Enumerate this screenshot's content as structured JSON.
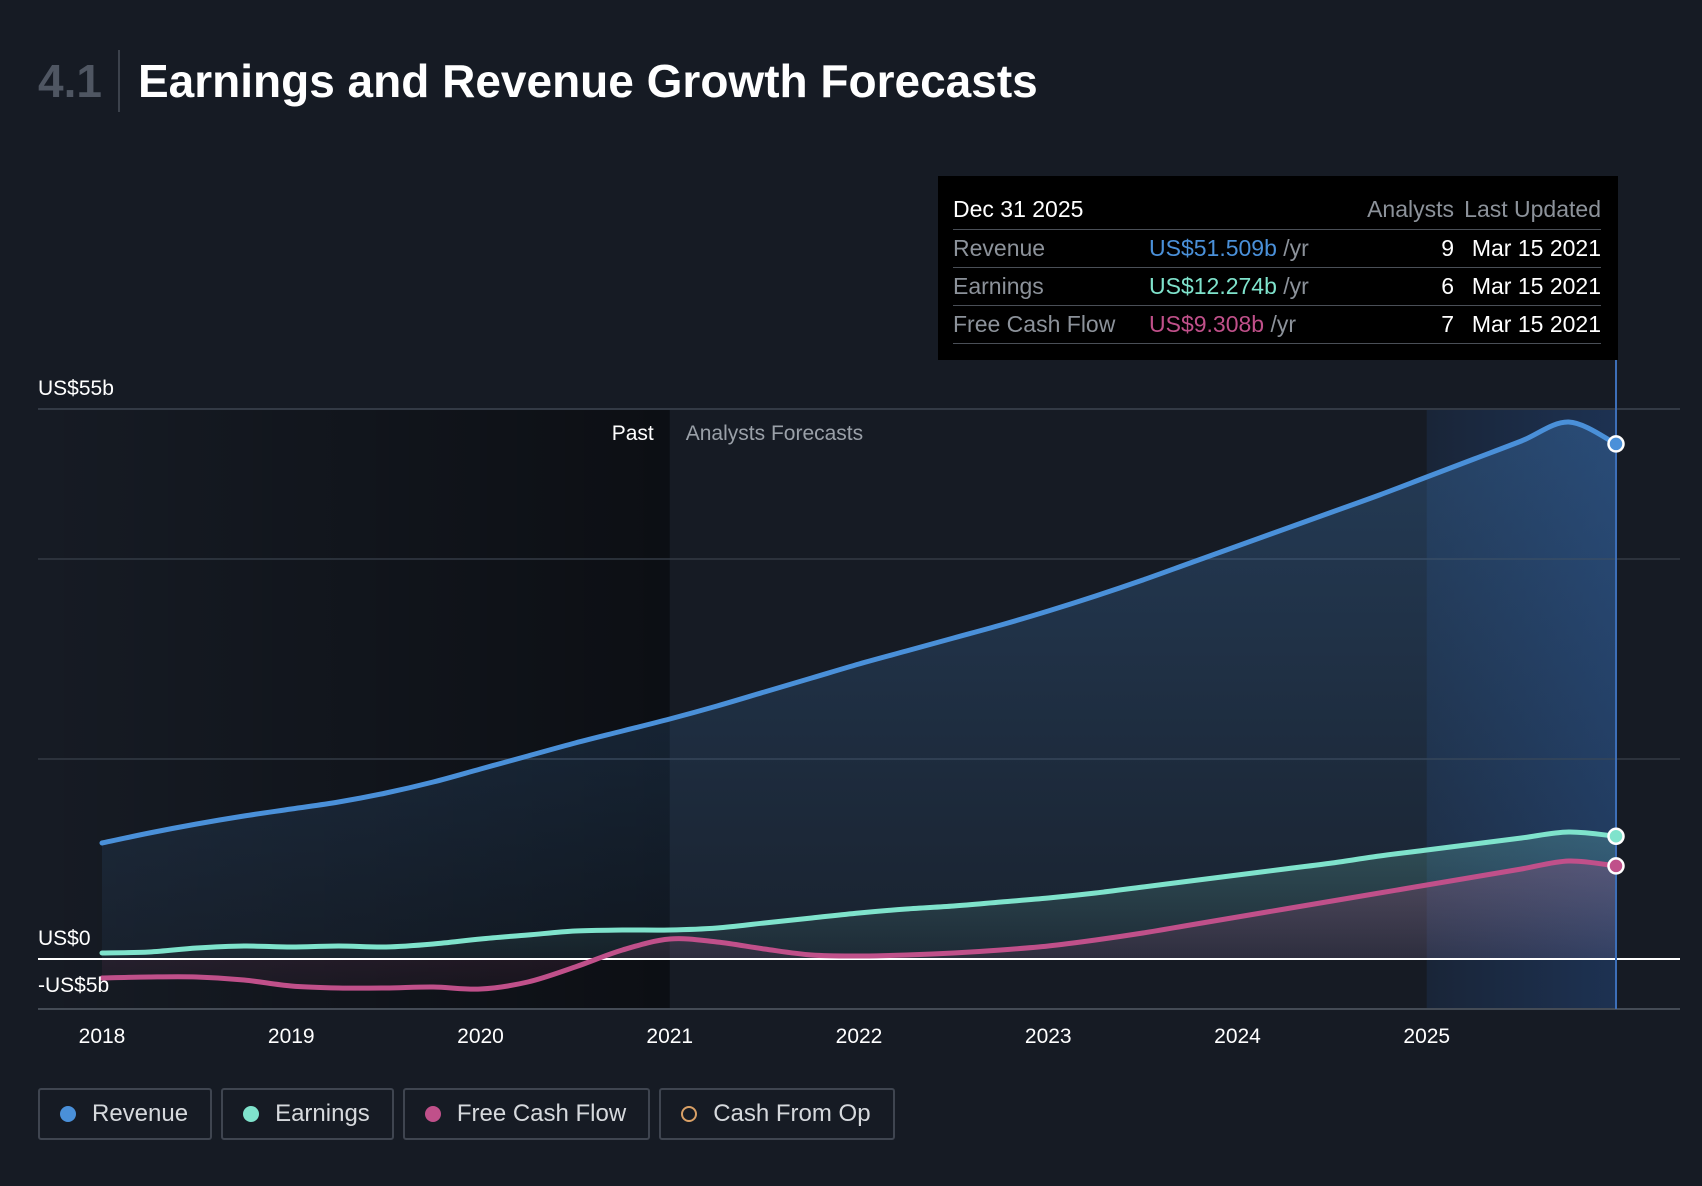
{
  "header": {
    "section_number": "4.1",
    "title": "Earnings and Revenue Growth Forecasts"
  },
  "tooltip": {
    "date": "Dec 31 2025",
    "col_analysts": "Analysts",
    "col_updated": "Last Updated",
    "rows": [
      {
        "label": "Revenue",
        "value": "US$51.509b",
        "unit": " /yr",
        "analysts": "9",
        "updated": "Mar 15 2021",
        "color": "#4a90d9"
      },
      {
        "label": "Earnings",
        "value": "US$12.274b",
        "unit": " /yr",
        "analysts": "6",
        "updated": "Mar 15 2021",
        "color": "#7fe3cc"
      },
      {
        "label": "Free Cash Flow",
        "value": "US$9.308b",
        "unit": " /yr",
        "analysts": "7",
        "updated": "Mar 15 2021",
        "color": "#c0508a"
      }
    ]
  },
  "regions": {
    "past_label": "Past",
    "forecast_label": "Analysts Forecasts"
  },
  "legend": [
    {
      "label": "Revenue",
      "color": "#4a90d9",
      "filled": true
    },
    {
      "label": "Earnings",
      "color": "#7fe3cc",
      "filled": true
    },
    {
      "label": "Free Cash Flow",
      "color": "#c0508a",
      "filled": true
    },
    {
      "label": "Cash From Op",
      "color": "#d9a066",
      "filled": false
    }
  ],
  "chart_data": {
    "type": "area",
    "title": "Earnings and Revenue Growth Forecasts",
    "x_ticks": [
      2018,
      2019,
      2020,
      2021,
      2022,
      2023,
      2024,
      2025
    ],
    "xlim": [
      2018,
      2026
    ],
    "y_labels": [
      {
        "value": 55,
        "text": "US$55b"
      },
      {
        "value": 0,
        "text": "US$0"
      },
      {
        "value": -5,
        "text": "-US$5b"
      }
    ],
    "ylim": [
      -5,
      55
    ],
    "gridlines": [
      55,
      40,
      20
    ],
    "past_end": 2021,
    "highlight_start": 2025,
    "series": [
      {
        "name": "Revenue",
        "color": "#4a90d9",
        "x": [
          2018,
          2018.25,
          2018.5,
          2018.75,
          2019,
          2019.25,
          2019.5,
          2019.75,
          2020,
          2020.25,
          2020.5,
          2020.75,
          2021,
          2021.25,
          2021.5,
          2021.75,
          2022,
          2022.25,
          2022.5,
          2022.75,
          2023,
          2023.25,
          2023.5,
          2023.75,
          2024,
          2024.25,
          2024.5,
          2024.75,
          2025,
          2025.25,
          2025.5,
          2025.75,
          2026
        ],
        "y": [
          11.6,
          12.6,
          13.5,
          14.3,
          15.0,
          15.7,
          16.6,
          17.7,
          19.0,
          20.3,
          21.6,
          22.8,
          24.0,
          25.3,
          26.7,
          28.1,
          29.5,
          30.8,
          32.1,
          33.4,
          34.8,
          36.3,
          37.9,
          39.6,
          41.3,
          43.0,
          44.7,
          46.4,
          48.2,
          50.0,
          51.8,
          53.7,
          51.509
        ]
      },
      {
        "name": "Earnings",
        "color": "#7fe3cc",
        "x": [
          2018,
          2018.25,
          2018.5,
          2018.75,
          2019,
          2019.25,
          2019.5,
          2019.75,
          2020,
          2020.25,
          2020.5,
          2020.75,
          2021,
          2021.25,
          2021.5,
          2021.75,
          2022,
          2022.25,
          2022.5,
          2022.75,
          2023,
          2023.25,
          2023.5,
          2023.75,
          2024,
          2024.25,
          2024.5,
          2024.75,
          2025,
          2025.25,
          2025.5,
          2025.75,
          2026
        ],
        "y": [
          0.6,
          0.7,
          1.1,
          1.3,
          1.2,
          1.3,
          1.2,
          1.5,
          2.0,
          2.4,
          2.8,
          2.9,
          2.9,
          3.1,
          3.6,
          4.1,
          4.6,
          5.0,
          5.3,
          5.7,
          6.1,
          6.6,
          7.2,
          7.8,
          8.4,
          9.0,
          9.6,
          10.3,
          10.9,
          11.5,
          12.1,
          12.7,
          12.274
        ]
      },
      {
        "name": "Free Cash Flow",
        "color": "#c0508a",
        "x": [
          2018,
          2018.25,
          2018.5,
          2018.75,
          2019,
          2019.25,
          2019.5,
          2019.75,
          2020,
          2020.25,
          2020.5,
          2020.75,
          2021,
          2021.25,
          2021.5,
          2021.75,
          2022,
          2022.25,
          2022.5,
          2022.75,
          2023,
          2023.25,
          2023.5,
          2023.75,
          2024,
          2024.25,
          2024.5,
          2024.75,
          2025,
          2025.25,
          2025.5,
          2025.75,
          2026
        ],
        "y": [
          -1.9,
          -1.8,
          -1.8,
          -2.1,
          -2.7,
          -2.9,
          -2.9,
          -2.8,
          -3.0,
          -2.3,
          -0.8,
          0.9,
          2.0,
          1.7,
          1.0,
          0.4,
          0.3,
          0.4,
          0.6,
          0.9,
          1.3,
          1.9,
          2.6,
          3.4,
          4.2,
          5.0,
          5.8,
          6.6,
          7.4,
          8.2,
          9.0,
          9.8,
          9.308
        ]
      }
    ]
  }
}
